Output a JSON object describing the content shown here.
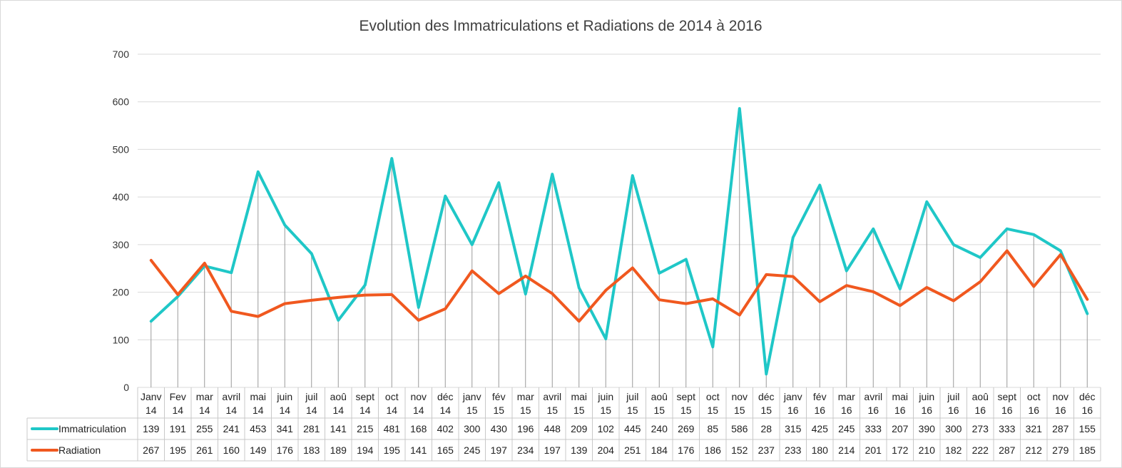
{
  "chart_data": {
    "type": "line",
    "title": "Evolution des Immatriculations et Radiations de 2014 à 2016",
    "xlabel": "",
    "ylabel": "",
    "ylim": [
      0,
      700
    ],
    "yticks": [
      "0",
      "100",
      "200",
      "300",
      "400",
      "500",
      "600",
      "700"
    ],
    "grid": true,
    "legend": "data-table-left",
    "categories": [
      [
        "Janv",
        "14"
      ],
      [
        "Fev",
        "14"
      ],
      [
        "mar",
        "14"
      ],
      [
        "avril",
        "14"
      ],
      [
        "mai",
        "14"
      ],
      [
        "juin",
        "14"
      ],
      [
        "juil",
        "14"
      ],
      [
        "aoû",
        "14"
      ],
      [
        "sept",
        "14"
      ],
      [
        "oct",
        "14"
      ],
      [
        "nov",
        "14"
      ],
      [
        "déc",
        "14"
      ],
      [
        "janv",
        "15"
      ],
      [
        "fév",
        "15"
      ],
      [
        "mar",
        "15"
      ],
      [
        "avril",
        "15"
      ],
      [
        "mai",
        "15"
      ],
      [
        "juin",
        "15"
      ],
      [
        "juil",
        "15"
      ],
      [
        "aoû",
        "15"
      ],
      [
        "sept",
        "15"
      ],
      [
        "oct",
        "15"
      ],
      [
        "nov",
        "15"
      ],
      [
        "déc",
        "15"
      ],
      [
        "janv",
        "16"
      ],
      [
        "fév",
        "16"
      ],
      [
        "mar",
        "16"
      ],
      [
        "avril",
        "16"
      ],
      [
        "mai",
        "16"
      ],
      [
        "juin",
        "16"
      ],
      [
        "juil",
        "16"
      ],
      [
        "aoû",
        "16"
      ],
      [
        "sept",
        "16"
      ],
      [
        "oct",
        "16"
      ],
      [
        "nov",
        "16"
      ],
      [
        "déc",
        "16"
      ]
    ],
    "series": [
      {
        "name": "Immatriculation",
        "color": "#1fc7c7",
        "values": [
          139,
          191,
          255,
          241,
          453,
          341,
          281,
          141,
          215,
          481,
          168,
          402,
          300,
          430,
          196,
          448,
          209,
          102,
          445,
          240,
          269,
          85,
          586,
          28,
          315,
          425,
          245,
          333,
          207,
          390,
          300,
          273,
          333,
          321,
          287,
          155
        ]
      },
      {
        "name": "Radiation",
        "color": "#f0581f",
        "values": [
          267,
          195,
          261,
          160,
          149,
          176,
          183,
          189,
          194,
          195,
          141,
          165,
          245,
          197,
          234,
          197,
          139,
          204,
          251,
          184,
          176,
          186,
          152,
          237,
          233,
          180,
          214,
          201,
          172,
          210,
          182,
          222,
          287,
          212,
          279,
          185
        ]
      }
    ]
  }
}
